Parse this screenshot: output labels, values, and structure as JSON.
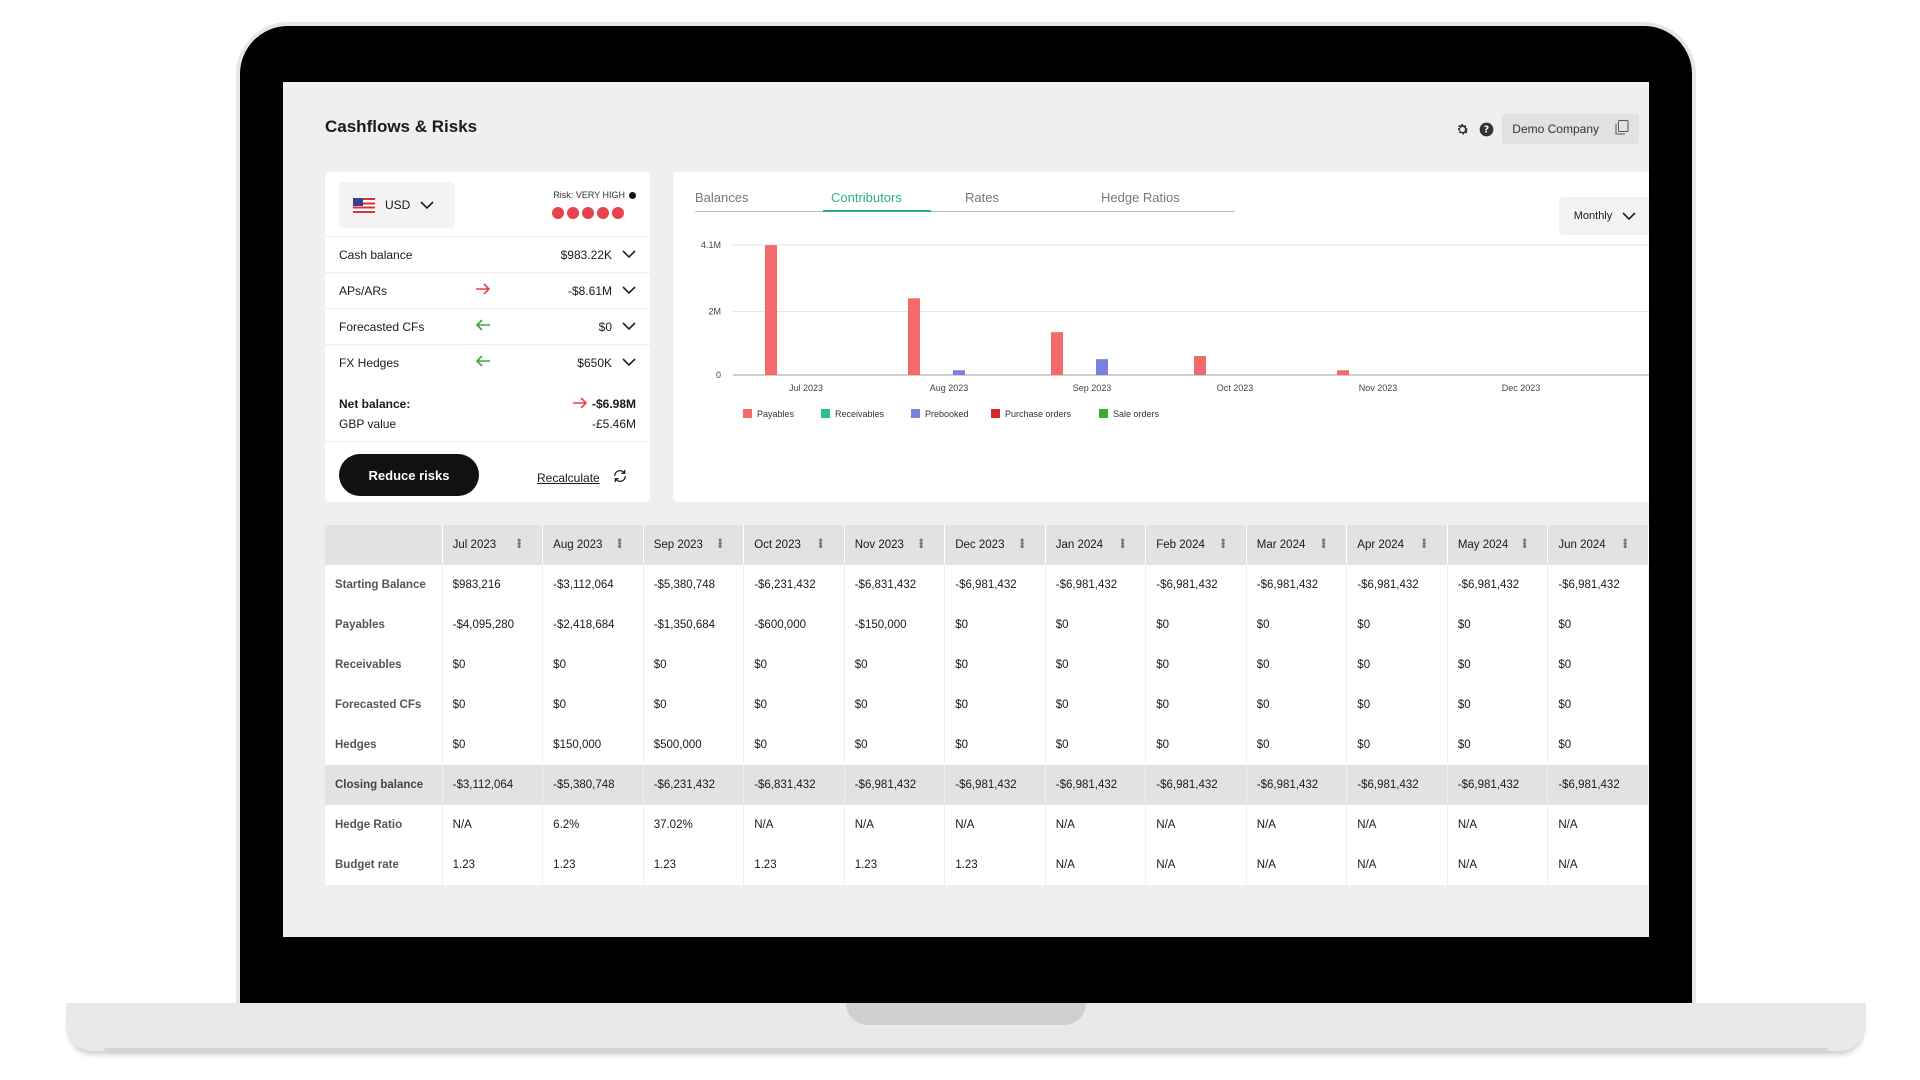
{
  "header": {
    "title": "Cashflows & Risks",
    "company": "Demo Company"
  },
  "summary": {
    "currency": "USD",
    "risk_label": "Risk: VERY HIGH",
    "risk_level": 5,
    "rows": [
      {
        "label": "Cash balance",
        "value": "$983.22K",
        "arrow": ""
      },
      {
        "label": "APs/ARs",
        "value": "-$8.61M",
        "arrow": "right"
      },
      {
        "label": "Forecasted CFs",
        "value": "$0",
        "arrow": "left"
      },
      {
        "label": "FX Hedges",
        "value": "$650K",
        "arrow": "left"
      }
    ],
    "net_balance_label": "Net balance:",
    "net_balance_value": "-$6.98M",
    "gbp_label": "GBP value",
    "gbp_value": "-£5.46M",
    "reduce_button": "Reduce risks",
    "recalculate": "Recalculate"
  },
  "chart_tabs": {
    "items": [
      "Balances",
      "Contributors",
      "Rates",
      "Hedge Ratios"
    ],
    "active": "Contributors",
    "period": "Monthly"
  },
  "chart_data": {
    "type": "bar",
    "categories": [
      "Jul 2023",
      "Aug 2023",
      "Sep 2023",
      "Oct 2023",
      "Nov 2023",
      "Dec 2023"
    ],
    "yticks": [
      "4.1M",
      "2M",
      "0"
    ],
    "ylim": [
      0,
      4100000
    ],
    "series": [
      {
        "name": "Payables",
        "color": "#f26a6a",
        "values": [
          4095280,
          2418684,
          1350684,
          600000,
          150000,
          0
        ]
      },
      {
        "name": "Receivables",
        "color": "#2ebd8c",
        "values": [
          0,
          0,
          0,
          0,
          0,
          0
        ]
      },
      {
        "name": "Prebooked",
        "color": "#7b7fe0",
        "values": [
          0,
          150000,
          500000,
          0,
          0,
          0
        ]
      },
      {
        "name": "Purchase orders",
        "color": "#d42b2b",
        "values": [
          0,
          0,
          0,
          0,
          0,
          0
        ]
      },
      {
        "name": "Sale orders",
        "color": "#3aaa35",
        "values": [
          0,
          0,
          0,
          0,
          0,
          0
        ]
      }
    ],
    "legend_position": "bottom-left",
    "grid": true
  },
  "table": {
    "columns": [
      "Jul 2023",
      "Aug 2023",
      "Sep 2023",
      "Oct 2023",
      "Nov 2023",
      "Dec 2023",
      "Jan 2024",
      "Feb 2024",
      "Mar 2024",
      "Apr 2024",
      "May 2024",
      "Jun 2024"
    ],
    "rows": [
      {
        "label": "Starting Balance",
        "cells": [
          "$983,216",
          "-$3,112,064",
          "-$5,380,748",
          "-$6,231,432",
          "-$6,831,432",
          "-$6,981,432",
          "-$6,981,432",
          "-$6,981,432",
          "-$6,981,432",
          "-$6,981,432",
          "-$6,981,432",
          "-$6,981,432"
        ]
      },
      {
        "label": "Payables",
        "cells": [
          "-$4,095,280",
          "-$2,418,684",
          "-$1,350,684",
          "-$600,000",
          "-$150,000",
          "$0",
          "$0",
          "$0",
          "$0",
          "$0",
          "$0",
          "$0"
        ]
      },
      {
        "label": "Receivables",
        "cells": [
          "$0",
          "$0",
          "$0",
          "$0",
          "$0",
          "$0",
          "$0",
          "$0",
          "$0",
          "$0",
          "$0",
          "$0"
        ]
      },
      {
        "label": "Forecasted CFs",
        "cells": [
          "$0",
          "$0",
          "$0",
          "$0",
          "$0",
          "$0",
          "$0",
          "$0",
          "$0",
          "$0",
          "$0",
          "$0"
        ]
      },
      {
        "label": "Hedges",
        "cells": [
          "$0",
          "$150,000",
          "$500,000",
          "$0",
          "$0",
          "$0",
          "$0",
          "$0",
          "$0",
          "$0",
          "$0",
          "$0"
        ]
      },
      {
        "label": "Closing balance",
        "cells": [
          "-$3,112,064",
          "-$5,380,748",
          "-$6,231,432",
          "-$6,831,432",
          "-$6,981,432",
          "-$6,981,432",
          "-$6,981,432",
          "-$6,981,432",
          "-$6,981,432",
          "-$6,981,432",
          "-$6,981,432",
          "-$6,981,432"
        ],
        "highlight": true
      },
      {
        "label": "Hedge Ratio",
        "cells": [
          "N/A",
          "6.2%",
          "37.02%",
          "N/A",
          "N/A",
          "N/A",
          "N/A",
          "N/A",
          "N/A",
          "N/A",
          "N/A",
          "N/A"
        ]
      },
      {
        "label": "Budget rate",
        "cells": [
          "1.23",
          "1.23",
          "1.23",
          "1.23",
          "1.23",
          "1.23",
          "N/A",
          "N/A",
          "N/A",
          "N/A",
          "N/A",
          "N/A"
        ]
      }
    ]
  }
}
